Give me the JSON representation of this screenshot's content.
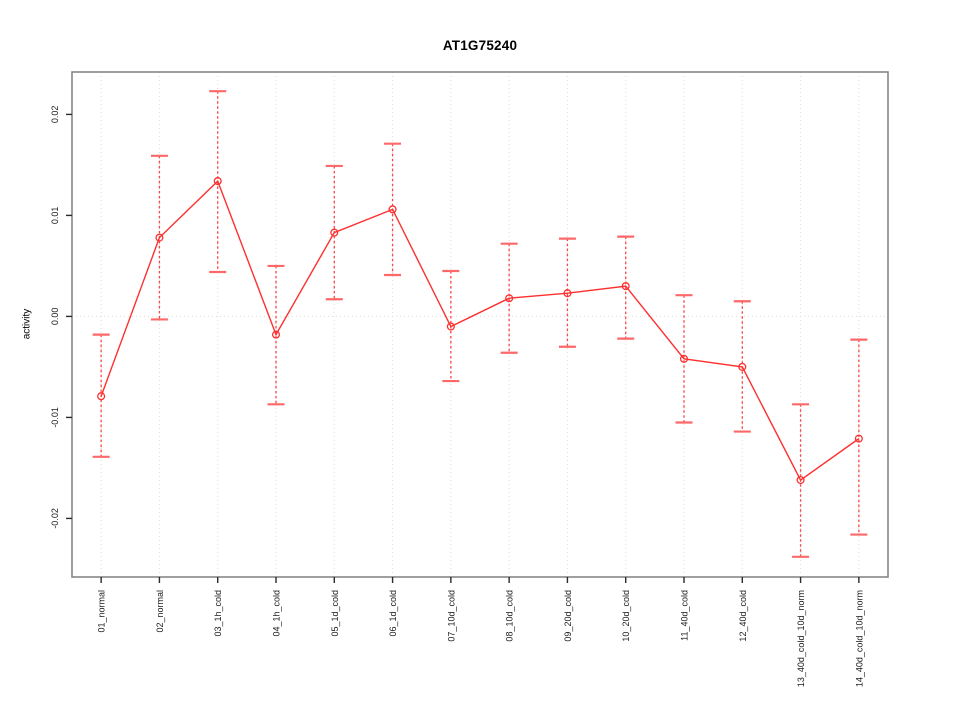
{
  "figure": {
    "title": "AT1G75240",
    "ylabel": "activity"
  },
  "chart_data": {
    "type": "line",
    "title": "AT1G75240",
    "xlabel": "",
    "ylabel": "activity",
    "legend": "none",
    "grid": "vertical dotted gridlines at each category plus dotted horizontal line at y=0",
    "marker": "open-circle",
    "error_bars": "dashed vertical whiskers with caps",
    "categories": [
      "01_normal",
      "02_normal",
      "03_1h_cold",
      "04_1h_cold",
      "05_1d_cold",
      "06_1d_cold",
      "07_10d_cold",
      "08_10d_cold",
      "09_20d_cold",
      "10_20d_cold",
      "11_40d_cold",
      "12_40d_cold",
      "13_40d_cold_10d_norm",
      "14_40d_cold_10d_norm"
    ],
    "series": [
      {
        "name": "activity",
        "values": [
          -0.0079,
          0.0078,
          0.0134,
          -0.0018,
          0.0083,
          0.0106,
          -0.001,
          0.0018,
          0.0023,
          0.003,
          -0.0042,
          -0.005,
          -0.0162,
          -0.0121
        ],
        "error_upper": [
          -0.0018,
          0.0159,
          0.0223,
          0.005,
          0.0149,
          0.0171,
          0.0045,
          0.0072,
          0.0077,
          0.0079,
          0.0021,
          0.0015,
          -0.0087,
          -0.0023
        ],
        "error_lower": [
          -0.0139,
          -0.0003,
          0.0044,
          -0.0087,
          0.0017,
          0.0041,
          -0.0064,
          -0.0036,
          -0.003,
          -0.0022,
          -0.0105,
          -0.0114,
          -0.0238,
          -0.0216
        ]
      }
    ],
    "yticks": [
      -0.02,
      -0.01,
      0.0,
      0.01,
      0.02
    ],
    "ylim": [
      -0.0258,
      0.0242
    ],
    "colors": {
      "series_line": "#fd3030",
      "error_bar": "#fd4545",
      "error_cap": "#fd6868",
      "gridline": "#dcdcdc",
      "frame": "#878787",
      "tick": "#2a2a2a",
      "text": "#1a1a1a"
    }
  }
}
